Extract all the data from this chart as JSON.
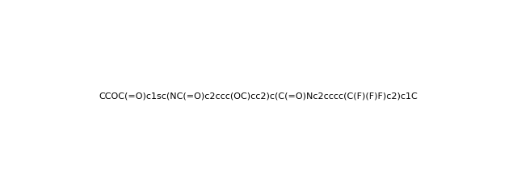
{
  "smiles": "CCOC(=O)c1sc(NC(=O)c2ccc(OC)cc2)c(C(=O)Nc2cccc(C(F)(F)F)c2)c1C",
  "title": "",
  "bg_color": "#ffffff",
  "line_color": "#000000",
  "figsize": [
    6.4,
    2.4
  ],
  "dpi": 100
}
